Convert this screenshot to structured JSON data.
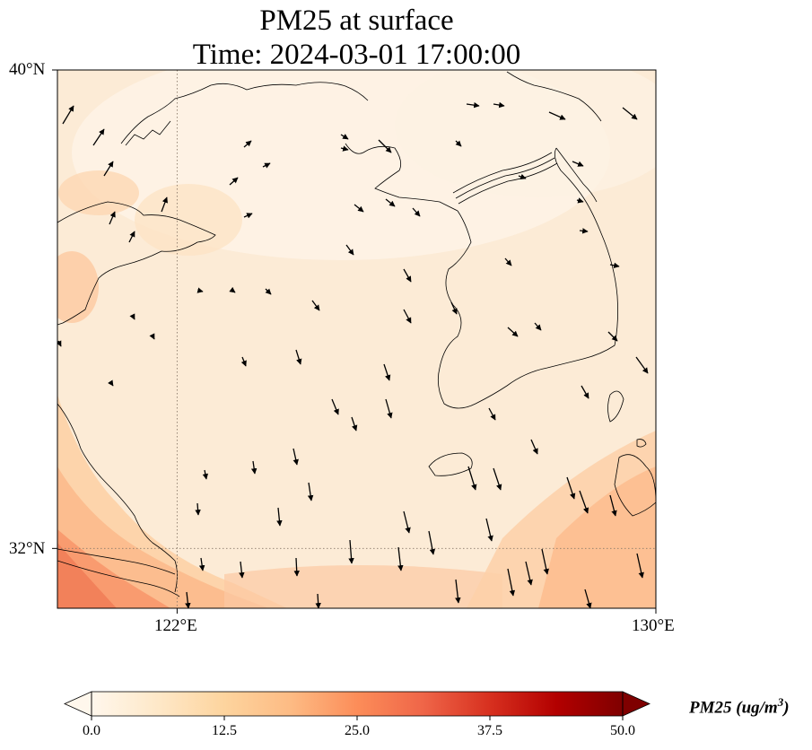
{
  "title": {
    "line1": "PM25 at surface",
    "line2": "Time: 2024-03-01 17:00:00"
  },
  "map": {
    "lon_range": [
      120,
      130
    ],
    "lat_range": [
      31,
      40
    ],
    "gridlines": {
      "lon": [
        122
      ],
      "lat": [
        32
      ],
      "style": "dotted"
    },
    "xticks": [
      {
        "value": 122,
        "label": "122°E"
      },
      {
        "value": 130,
        "label": "130°E"
      }
    ],
    "yticks": [
      {
        "value": 40,
        "label": "40°N"
      },
      {
        "value": 32,
        "label": "32°N"
      }
    ],
    "field": "PM25",
    "overlay": "wind-vectors"
  },
  "colorbar": {
    "min": 0,
    "max": 50,
    "colormap": "OrRd",
    "ticks": [
      "0.0",
      "12.5",
      "25.0",
      "37.5",
      "50.0"
    ],
    "label_base": "PM25 (ug/m",
    "label_sup": "3",
    "label_close": ")",
    "extend": "both",
    "colors": [
      "#fff7ec",
      "#fee8c8",
      "#fdd49e",
      "#fdbb84",
      "#fc8d59",
      "#ef6548",
      "#d7301f",
      "#b30000",
      "#7f0000"
    ]
  }
}
